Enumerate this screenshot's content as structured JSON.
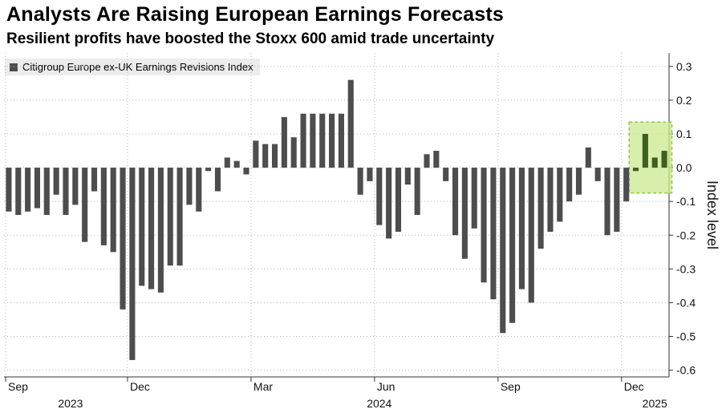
{
  "title": "Analysts Are Raising European Earnings Forecasts",
  "subtitle": "Resilient profits have boosted the Stoxx 600 amid trade uncertainty",
  "chart_data": {
    "type": "bar",
    "series": [
      {
        "name": "Citigroup Europe ex-UK Earnings Revisions Index",
        "color": "#4d4d4d",
        "values": [
          -0.13,
          -0.14,
          -0.13,
          -0.12,
          -0.14,
          -0.08,
          -0.14,
          -0.11,
          -0.22,
          -0.07,
          -0.23,
          -0.25,
          -0.42,
          -0.57,
          -0.35,
          -0.36,
          -0.37,
          -0.29,
          -0.29,
          -0.11,
          -0.13,
          -0.01,
          -0.07,
          0.03,
          0.02,
          -0.02,
          0.08,
          0.07,
          0.07,
          0.15,
          0.09,
          0.16,
          0.16,
          0.16,
          0.16,
          0.16,
          0.26,
          -0.08,
          -0.04,
          -0.17,
          -0.21,
          -0.19,
          -0.05,
          -0.14,
          0.04,
          0.05,
          -0.04,
          -0.2,
          -0.27,
          -0.18,
          -0.34,
          -0.39,
          -0.49,
          -0.46,
          -0.36,
          -0.4,
          -0.24,
          -0.19,
          -0.16,
          -0.1,
          -0.08,
          0.06,
          -0.04,
          -0.2,
          -0.19,
          -0.1,
          -0.01,
          0.1,
          0.03,
          0.05
        ]
      }
    ],
    "highlight_from_index": 66,
    "highlight_color": "#8cc63f",
    "ylabel": "Index level",
    "ylim": [
      -0.62,
      0.34
    ],
    "yticks": [
      0.3,
      0.2,
      0.1,
      0.0,
      -0.1,
      -0.2,
      -0.3,
      -0.4,
      -0.5,
      -0.6
    ],
    "ytick_labels": [
      "0.3",
      "0.2",
      "0.1",
      "0.0",
      "-0.1",
      "-0.2",
      "-0.3",
      "-0.4",
      "-0.5",
      "-0.6"
    ],
    "month_ticks": [
      {
        "label": "Sep",
        "index": 0
      },
      {
        "label": "Dec",
        "index": 13
      },
      {
        "label": "Mar",
        "index": 26
      },
      {
        "label": "Jun",
        "index": 39
      },
      {
        "label": "Sep",
        "index": 52
      },
      {
        "label": "Dec",
        "index": 65
      }
    ],
    "year_labels": [
      {
        "label": "2023",
        "index": 6.5
      },
      {
        "label": "2024",
        "index": 39
      },
      {
        "label": "2025",
        "index": 68
      }
    ]
  }
}
